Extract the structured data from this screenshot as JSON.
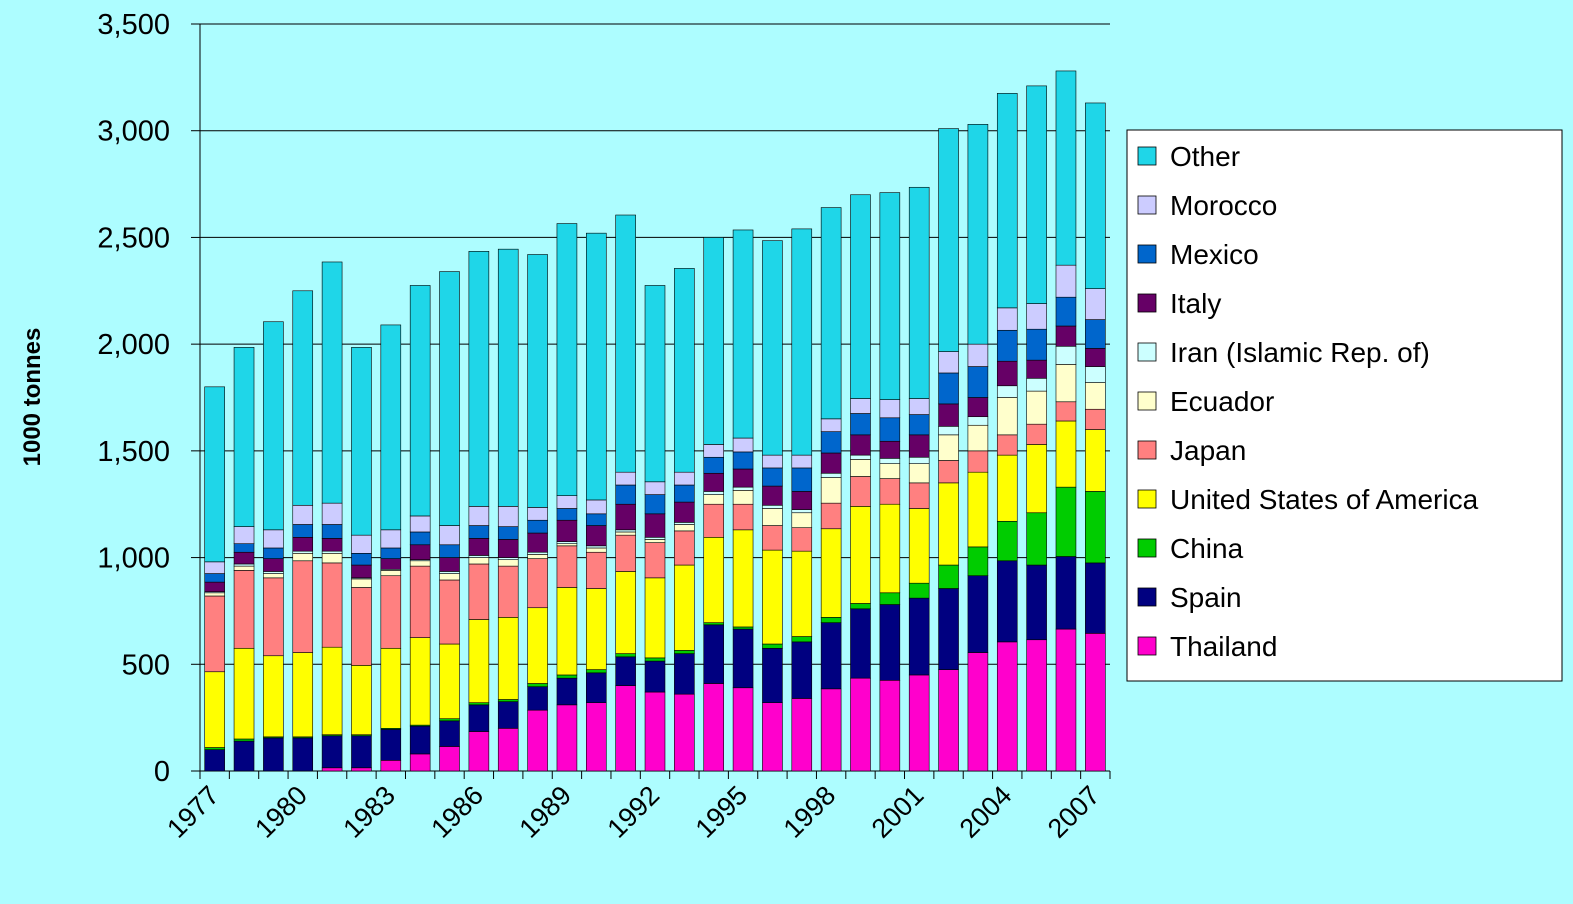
{
  "chart_data": {
    "type": "stacked_bar",
    "y_label": "1000 tonnes",
    "categories": [
      "1977",
      null,
      null,
      "1980",
      null,
      null,
      "1983",
      null,
      null,
      "1986",
      null,
      null,
      "1989",
      null,
      null,
      "1992",
      null,
      null,
      "1995",
      null,
      null,
      "1998",
      null,
      null,
      "2001",
      null,
      null,
      "2004",
      null,
      null,
      "2007"
    ],
    "series": [
      {
        "name": "Thailand",
        "color": "#ff00cc",
        "values": [
          0,
          0,
          0,
          0,
          15,
          15,
          50,
          80,
          115,
          185,
          200,
          285,
          310,
          320,
          400,
          370,
          360,
          410,
          390,
          320,
          340,
          385,
          435,
          425,
          450,
          475,
          555,
          605,
          615,
          665,
          645
        ]
      },
      {
        "name": "Spain",
        "color": "#000080",
        "values": [
          100,
          140,
          155,
          155,
          150,
          150,
          145,
          130,
          120,
          125,
          125,
          110,
          125,
          140,
          135,
          145,
          190,
          275,
          275,
          255,
          265,
          310,
          325,
          355,
          360,
          380,
          360,
          380,
          350,
          340,
          330
        ]
      },
      {
        "name": "China",
        "color": "#00cc00",
        "values": [
          10,
          10,
          5,
          5,
          5,
          5,
          5,
          5,
          10,
          10,
          10,
          15,
          15,
          15,
          15,
          15,
          15,
          10,
          10,
          20,
          25,
          25,
          25,
          55,
          70,
          110,
          135,
          185,
          245,
          325,
          335
        ]
      },
      {
        "name": "United States of America",
        "color": "#ffff00",
        "values": [
          355,
          425,
          380,
          395,
          410,
          325,
          375,
          410,
          350,
          390,
          385,
          355,
          410,
          380,
          385,
          375,
          400,
          400,
          455,
          440,
          400,
          415,
          455,
          415,
          350,
          385,
          350,
          310,
          320,
          310,
          290
        ]
      },
      {
        "name": "Japan",
        "color": "#ff8080",
        "values": [
          355,
          365,
          365,
          430,
          395,
          365,
          340,
          335,
          300,
          260,
          240,
          230,
          195,
          170,
          170,
          165,
          160,
          155,
          120,
          115,
          110,
          120,
          140,
          120,
          120,
          105,
          100,
          95,
          95,
          90,
          95
        ]
      },
      {
        "name": "Ecuador",
        "color": "#ffffcc",
        "values": [
          15,
          20,
          20,
          35,
          45,
          40,
          25,
          25,
          30,
          30,
          30,
          20,
          10,
          20,
          15,
          15,
          30,
          45,
          65,
          80,
          70,
          120,
          80,
          70,
          90,
          120,
          120,
          175,
          155,
          175,
          125
        ]
      },
      {
        "name": "Iran (Islamic Rep. of)",
        "color": "#ccffff",
        "values": [
          5,
          10,
          10,
          10,
          10,
          5,
          5,
          5,
          10,
          10,
          10,
          10,
          10,
          10,
          10,
          10,
          10,
          15,
          15,
          15,
          15,
          20,
          20,
          25,
          30,
          40,
          40,
          55,
          60,
          85,
          75
        ]
      },
      {
        "name": "Italy",
        "color": "#660066",
        "values": [
          45,
          55,
          60,
          65,
          60,
          60,
          50,
          70,
          65,
          80,
          85,
          90,
          100,
          95,
          120,
          110,
          95,
          85,
          85,
          90,
          85,
          95,
          95,
          80,
          105,
          105,
          90,
          115,
          85,
          95,
          85
        ]
      },
      {
        "name": "Mexico",
        "color": "#0066cc",
        "values": [
          40,
          40,
          50,
          60,
          65,
          55,
          50,
          60,
          60,
          60,
          60,
          60,
          55,
          55,
          90,
          90,
          80,
          75,
          80,
          85,
          110,
          100,
          100,
          110,
          95,
          145,
          145,
          145,
          145,
          135,
          135
        ]
      },
      {
        "name": "Morocco",
        "color": "#ccccff",
        "values": [
          55,
          80,
          85,
          90,
          100,
          85,
          85,
          75,
          90,
          90,
          95,
          60,
          60,
          65,
          60,
          60,
          60,
          60,
          65,
          60,
          60,
          60,
          70,
          85,
          75,
          100,
          105,
          105,
          120,
          150,
          145
        ]
      },
      {
        "name": "Other",
        "color": "#1fd6e8",
        "values": [
          820,
          840,
          975,
          1005,
          1130,
          880,
          960,
          1080,
          1190,
          1195,
          1205,
          1185,
          1275,
          1250,
          1205,
          920,
          955,
          970,
          975,
          1005,
          1060,
          990,
          955,
          970,
          990,
          1045,
          1030,
          1005,
          1020,
          910,
          870
        ]
      }
    ],
    "ylim": [
      0,
      3500
    ],
    "yticks": [
      0,
      500,
      {
        "value": 1000,
        "label": "1,000"
      },
      {
        "value": 1500,
        "label": "1,500"
      },
      {
        "value": 2000,
        "label": "2,000"
      },
      {
        "value": 2500,
        "label": "2,500"
      },
      {
        "value": 3000,
        "label": "3,000"
      },
      {
        "value": 3500,
        "label": "3,500"
      }
    ],
    "grid": true,
    "legend": "right"
  }
}
